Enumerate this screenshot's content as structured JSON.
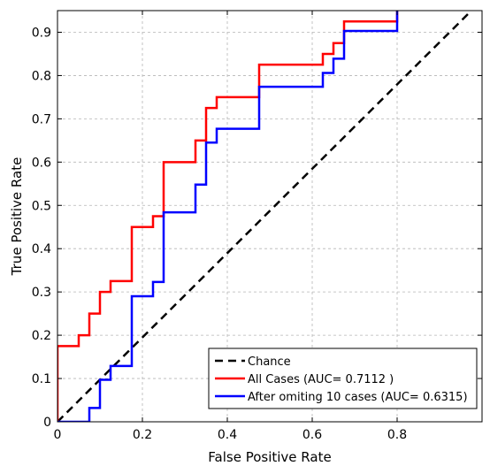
{
  "chart_data": {
    "type": "line",
    "title": "",
    "xlabel": "False Positive Rate",
    "ylabel": "True Positive Rate",
    "xlim": [
      0,
      1
    ],
    "ylim": [
      0,
      0.95
    ],
    "xticks": [
      0,
      0.2,
      0.4,
      0.6,
      0.8
    ],
    "xtick_labels": [
      "0",
      "0.2",
      "0.4",
      "0.6",
      "0.8"
    ],
    "yticks": [
      0,
      0.1,
      0.2,
      0.3,
      0.4,
      0.5,
      0.6,
      0.7,
      0.8,
      0.9
    ],
    "ytick_labels": [
      "0",
      "0.1",
      "0.2",
      "0.3",
      "0.4",
      "0.5",
      "0.6",
      "0.7",
      "0.8",
      "0.9"
    ],
    "grid": true,
    "legend_position": "bottom-right",
    "series": [
      {
        "name": "Chance",
        "color": "#000000",
        "style": "dashed",
        "x": [
          0,
          0.975
        ],
        "y": [
          0,
          0.95
        ]
      },
      {
        "name": "All Cases (AUC= 0.7112 )",
        "color": "#ff0000",
        "style": "solid",
        "x": [
          0,
          0,
          0.05,
          0.05,
          0.075,
          0.075,
          0.1,
          0.1,
          0.125,
          0.125,
          0.175,
          0.175,
          0.225,
          0.225,
          0.25,
          0.25,
          0.325,
          0.325,
          0.35,
          0.35,
          0.375,
          0.375,
          0.475,
          0.475,
          0.625,
          0.625,
          0.65,
          0.65,
          0.675,
          0.675,
          0.8,
          0.8
        ],
        "y": [
          0,
          0.175,
          0.175,
          0.2,
          0.2,
          0.25,
          0.25,
          0.3,
          0.3,
          0.325,
          0.325,
          0.45,
          0.45,
          0.475,
          0.475,
          0.6,
          0.6,
          0.65,
          0.65,
          0.725,
          0.725,
          0.75,
          0.75,
          0.825,
          0.825,
          0.85,
          0.85,
          0.875,
          0.875,
          0.925,
          0.925,
          0.95
        ]
      },
      {
        "name": "After omiting 10 cases (AUC= 0.6315)",
        "color": "#0000ff",
        "style": "solid",
        "x": [
          0,
          0.075,
          0.075,
          0.1,
          0.1,
          0.125,
          0.125,
          0.175,
          0.175,
          0.225,
          0.225,
          0.25,
          0.25,
          0.325,
          0.325,
          0.35,
          0.35,
          0.375,
          0.375,
          0.475,
          0.475,
          0.625,
          0.625,
          0.65,
          0.65,
          0.675,
          0.675,
          0.8,
          0.8
        ],
        "y": [
          0,
          0,
          0.032,
          0.032,
          0.097,
          0.097,
          0.129,
          0.129,
          0.29,
          0.29,
          0.323,
          0.323,
          0.484,
          0.484,
          0.548,
          0.548,
          0.645,
          0.645,
          0.677,
          0.677,
          0.774,
          0.774,
          0.806,
          0.806,
          0.839,
          0.839,
          0.903,
          0.903,
          0.95
        ]
      }
    ]
  }
}
